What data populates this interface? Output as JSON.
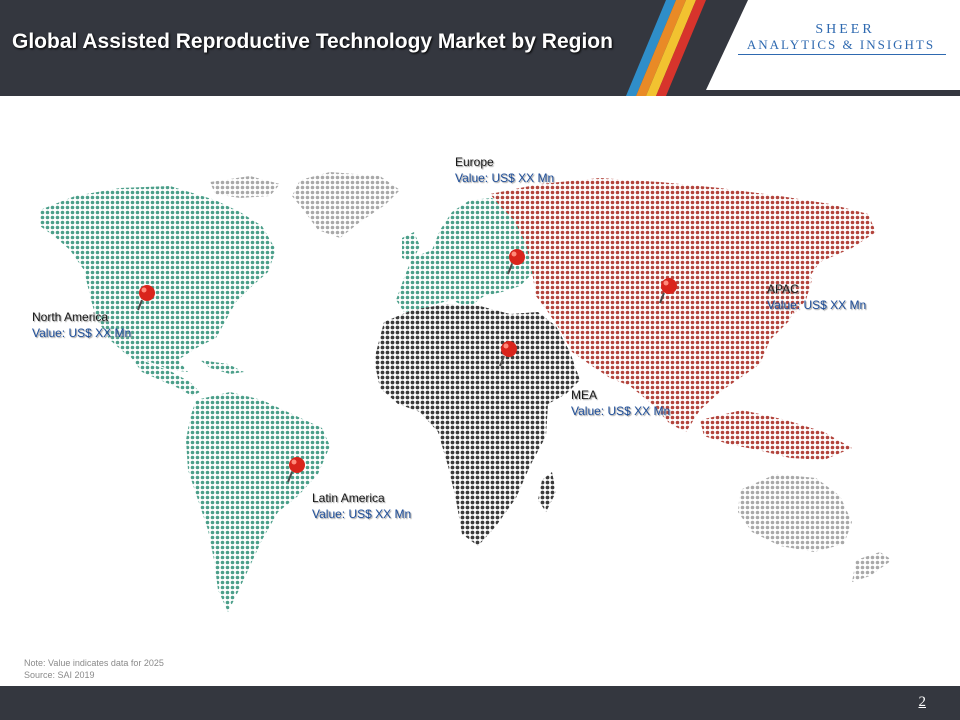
{
  "header": {
    "title": "Global Assisted Reproductive Technology Market by Region"
  },
  "logo": {
    "line1": "SHEER",
    "line2": "ANALYTICS & INSIGHTS"
  },
  "colors": {
    "header_bg": "#34373f",
    "stripe_blue": "#2f8ec9",
    "stripe_orange": "#e98a26",
    "stripe_yellow": "#f2c230",
    "stripe_red": "#d7342c",
    "north_america": "#4c9f8a",
    "latin_america": "#4c9f8a",
    "europe": "#4c9f8a",
    "apac": "#b3453d",
    "mea": "#3b3b3b",
    "unassigned": "#a9a9a9",
    "pin": "#d9241c"
  },
  "regions": {
    "europe": {
      "name": "Europe",
      "value": "Value: US$ XX Mn"
    },
    "north_america": {
      "name": "North America",
      "value": "Value: US$ XX Mn"
    },
    "apac": {
      "name": "APAC",
      "value": "Value: US$ XX Mn"
    },
    "mea": {
      "name": "MEA",
      "value": "Value: US$ XX Mn"
    },
    "latin_america": {
      "name": "Latin America",
      "value": "Value: US$ XX Mn"
    }
  },
  "note": {
    "line1": "Note: Value indicates data for 2025",
    "line2": "Source: SAI 2019"
  },
  "footer": {
    "page_number": "2"
  }
}
